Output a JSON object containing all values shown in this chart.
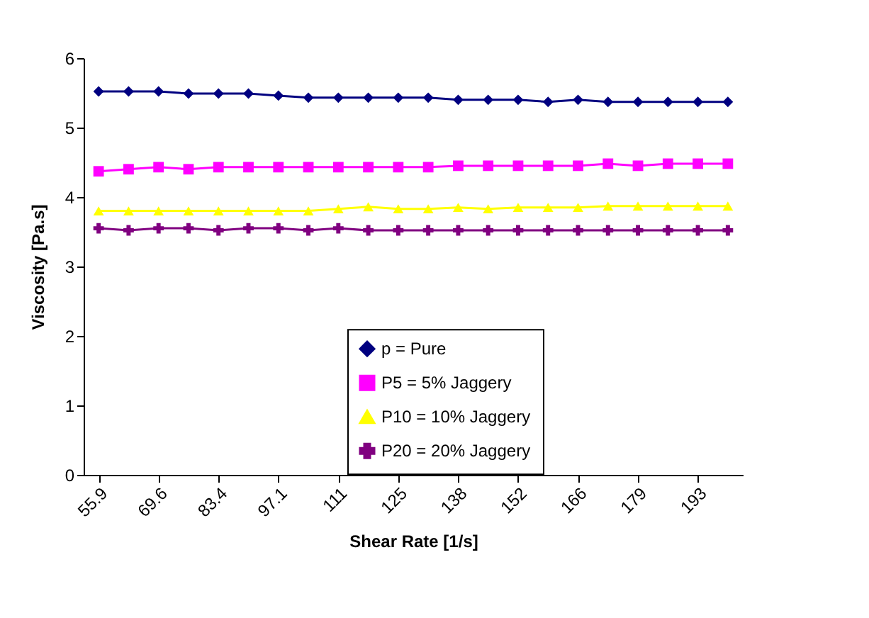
{
  "chart_data": {
    "type": "line",
    "xlabel": "Shear Rate [1/s]",
    "ylabel": "Viscosity [Pa.s]",
    "categories": [
      "55.9",
      null,
      "69.6",
      null,
      "83.4",
      null,
      "97.1",
      null,
      "111",
      null,
      "125",
      null,
      "138",
      null,
      "152",
      null,
      "166",
      null,
      "179",
      null,
      "193",
      null
    ],
    "ylim": [
      0,
      6
    ],
    "yticks": [
      0,
      1,
      2,
      3,
      4,
      5,
      6
    ],
    "grid": false,
    "legend": "bottom",
    "series": [
      {
        "name": "p = Pure",
        "color": "#000080",
        "marker": "diamond",
        "values": [
          5.52,
          5.52,
          5.52,
          5.49,
          5.49,
          5.49,
          5.46,
          5.43,
          5.43,
          5.43,
          5.43,
          5.43,
          5.4,
          5.4,
          5.4,
          5.37,
          5.4,
          5.37,
          5.37,
          5.37,
          5.37,
          5.37
        ]
      },
      {
        "name": "P5 = 5% Jaggery",
        "color": "#ff00ff",
        "marker": "square",
        "values": [
          4.37,
          4.4,
          4.43,
          4.4,
          4.43,
          4.43,
          4.43,
          4.43,
          4.43,
          4.43,
          4.43,
          4.43,
          4.45,
          4.45,
          4.45,
          4.45,
          4.45,
          4.48,
          4.45,
          4.48,
          4.48,
          4.48
        ]
      },
      {
        "name": "P10 = 10% Jaggery",
        "color": "#ffff00",
        "marker": "triangle",
        "values": [
          3.8,
          3.8,
          3.8,
          3.8,
          3.8,
          3.8,
          3.8,
          3.8,
          3.83,
          3.86,
          3.83,
          3.83,
          3.85,
          3.83,
          3.85,
          3.85,
          3.85,
          3.87,
          3.87,
          3.87,
          3.87,
          3.87
        ]
      },
      {
        "name": "P20 = 20% Jaggery",
        "color": "#800080",
        "marker": "cross",
        "values": [
          3.55,
          3.52,
          3.55,
          3.55,
          3.52,
          3.55,
          3.55,
          3.52,
          3.55,
          3.52,
          3.52,
          3.52,
          3.52,
          3.52,
          3.52,
          3.52,
          3.52,
          3.52,
          3.52,
          3.52,
          3.52,
          3.52
        ]
      }
    ]
  }
}
